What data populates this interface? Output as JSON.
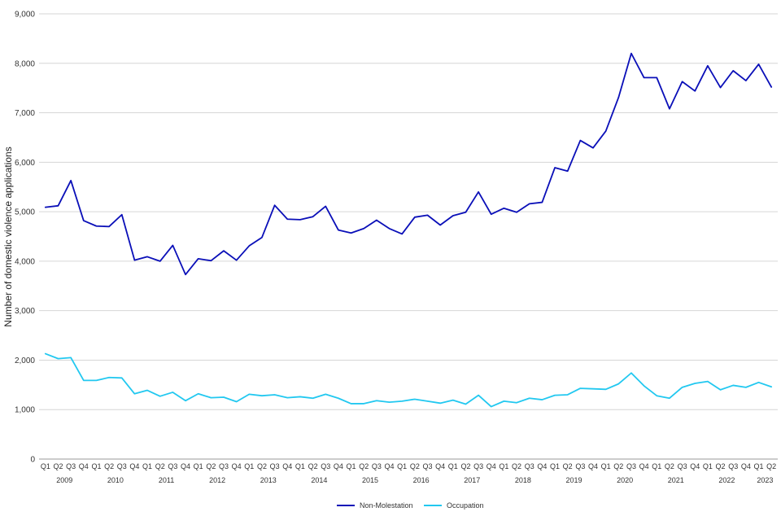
{
  "chart_data": {
    "type": "line",
    "title": "",
    "xlabel": "",
    "ylabel": "Number of domestic violence applications",
    "ylim": [
      0,
      9000
    ],
    "yticks": [
      "0",
      "1,000",
      "2,000",
      "3,000",
      "4,000",
      "5,000",
      "6,000",
      "7,000",
      "8,000",
      "9,000"
    ],
    "grid": "horizontal",
    "legend_position": "bottom-center",
    "quarter_labels": [
      "Q1",
      "Q2",
      "Q3",
      "Q4"
    ],
    "years": [
      "2009",
      "2010",
      "2011",
      "2012",
      "2013",
      "2014",
      "2015",
      "2016",
      "2017",
      "2018",
      "2019",
      "2020",
      "2021",
      "2022",
      "2023"
    ],
    "quarters_per_year": [
      4,
      4,
      4,
      4,
      4,
      4,
      4,
      4,
      4,
      4,
      4,
      4,
      4,
      4,
      2
    ],
    "series": [
      {
        "name": "Non-Molestation",
        "color": "#0a0fb8",
        "values": [
          5090,
          5120,
          5630,
          4820,
          4710,
          4700,
          4940,
          4020,
          4090,
          4000,
          4320,
          3730,
          4050,
          4010,
          4210,
          4020,
          4310,
          4480,
          5130,
          4850,
          4840,
          4900,
          5110,
          4630,
          4570,
          4660,
          4830,
          4660,
          4550,
          4890,
          4930,
          4730,
          4920,
          4990,
          5400,
          4950,
          5070,
          4990,
          5160,
          5190,
          5890,
          5820,
          6440,
          6290,
          6630,
          7310,
          8200,
          7710,
          7710,
          7080,
          7630,
          7440,
          7950,
          7510,
          7850,
          7650,
          7980,
          7520
        ]
      },
      {
        "name": "Occupation",
        "color": "#22c8f0",
        "values": [
          2130,
          2030,
          2050,
          1590,
          1590,
          1650,
          1640,
          1320,
          1390,
          1270,
          1350,
          1180,
          1320,
          1240,
          1250,
          1160,
          1310,
          1280,
          1300,
          1240,
          1260,
          1230,
          1310,
          1230,
          1120,
          1120,
          1180,
          1150,
          1170,
          1210,
          1170,
          1130,
          1190,
          1110,
          1290,
          1060,
          1170,
          1140,
          1230,
          1200,
          1290,
          1300,
          1430,
          1420,
          1410,
          1520,
          1740,
          1480,
          1280,
          1230,
          1450,
          1530,
          1570,
          1400,
          1490,
          1450,
          1550,
          1460
        ]
      }
    ]
  }
}
